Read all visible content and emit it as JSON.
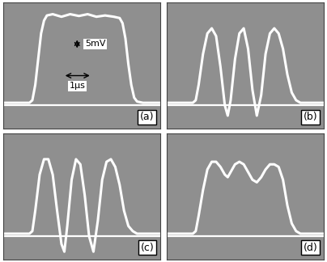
{
  "chart_data": [
    {
      "type": "line",
      "label": "(a)",
      "tick_labels": false,
      "color": "#ffffff",
      "baseline": 0,
      "xlim": [
        0,
        5.4
      ],
      "ylim": [
        -9,
        40
      ],
      "x": [
        0,
        0.9,
        1.0,
        1.1,
        1.2,
        1.3,
        1.4,
        1.5,
        1.7,
        2.0,
        2.3,
        2.6,
        2.9,
        3.2,
        3.5,
        3.8,
        4.0,
        4.1,
        4.2,
        4.3,
        4.4,
        4.5,
        4.6,
        4.8,
        5.4
      ],
      "values": [
        1,
        1,
        2,
        8,
        18,
        28,
        33,
        35,
        35.5,
        34.5,
        35.5,
        34.8,
        35.5,
        34.5,
        35,
        34.5,
        34,
        32,
        26,
        16,
        8,
        3,
        1.5,
        1,
        1
      ],
      "scale_bars": [
        {
          "axis": "y",
          "value": 5,
          "label": "5mV"
        },
        {
          "axis": "x",
          "value": 1,
          "label": "1μs"
        }
      ]
    },
    {
      "type": "line",
      "label": "(b)",
      "tick_labels": false,
      "color": "#ffffff",
      "baseline": 0,
      "xlim": [
        0,
        5.4
      ],
      "ylim": [
        -9,
        40
      ],
      "x": [
        0,
        0.9,
        1.0,
        1.1,
        1.25,
        1.4,
        1.55,
        1.7,
        1.85,
        2.0,
        2.1,
        2.2,
        2.35,
        2.5,
        2.65,
        2.8,
        2.95,
        3.1,
        3.25,
        3.4,
        3.55,
        3.7,
        3.85,
        4.0,
        4.15,
        4.3,
        4.45,
        4.6,
        4.8,
        5.4
      ],
      "values": [
        1,
        1,
        2,
        8,
        20,
        28,
        30,
        27,
        15,
        0,
        -4,
        2,
        18,
        28,
        30,
        22,
        6,
        -4,
        4,
        20,
        28,
        30,
        28,
        22,
        12,
        5,
        2,
        1,
        1,
        1
      ]
    },
    {
      "type": "line",
      "label": "(c)",
      "tick_labels": false,
      "color": "#ffffff",
      "baseline": 0,
      "xlim": [
        0,
        5.4
      ],
      "ylim": [
        -9,
        40
      ],
      "x": [
        0,
        0.9,
        1.0,
        1.1,
        1.25,
        1.4,
        1.55,
        1.7,
        1.85,
        2.0,
        2.1,
        2.2,
        2.35,
        2.5,
        2.65,
        2.8,
        2.95,
        3.1,
        3.25,
        3.4,
        3.55,
        3.7,
        3.85,
        4.0,
        4.15,
        4.3,
        4.45,
        4.6,
        4.8,
        5.4
      ],
      "values": [
        1,
        1,
        2,
        10,
        24,
        30,
        30,
        24,
        10,
        -3,
        -6,
        4,
        22,
        30,
        28,
        16,
        0,
        -6,
        6,
        22,
        29,
        30,
        27,
        20,
        10,
        4,
        2,
        1,
        1,
        1
      ]
    },
    {
      "type": "line",
      "label": "(d)",
      "tick_labels": false,
      "color": "#ffffff",
      "baseline": 0,
      "xlim": [
        0,
        5.4
      ],
      "ylim": [
        -9,
        40
      ],
      "x": [
        0,
        0.9,
        1.0,
        1.1,
        1.25,
        1.4,
        1.55,
        1.7,
        1.85,
        2.0,
        2.1,
        2.2,
        2.35,
        2.5,
        2.65,
        2.8,
        2.95,
        3.1,
        3.25,
        3.4,
        3.55,
        3.7,
        3.85,
        4.0,
        4.15,
        4.3,
        4.45,
        4.6,
        4.8,
        5.4
      ],
      "values": [
        1,
        1,
        2,
        8,
        18,
        26,
        29,
        29,
        27,
        24,
        23,
        25,
        28,
        29,
        28,
        25,
        22,
        21,
        23,
        26,
        28,
        28,
        27,
        22,
        12,
        5,
        2,
        1,
        1,
        1
      ]
    }
  ]
}
